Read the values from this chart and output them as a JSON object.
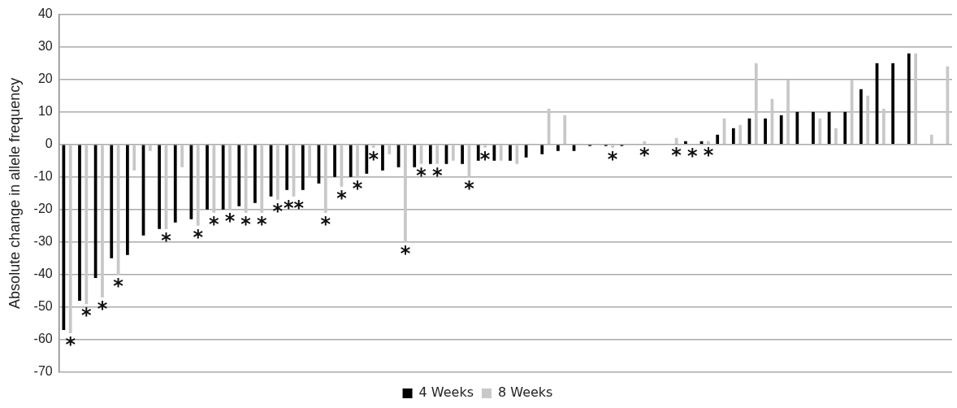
{
  "chart_data": {
    "type": "bar",
    "ylabel": "Absolute change in allele frequency",
    "categories": [
      null,
      null,
      null,
      null,
      null,
      null,
      null,
      null,
      null,
      null,
      null,
      null,
      null,
      null,
      null,
      null,
      null,
      null,
      null,
      null,
      null,
      null,
      null,
      null,
      null,
      null,
      null,
      null,
      null,
      null,
      null,
      null,
      null,
      null,
      null,
      null,
      null,
      null,
      null,
      null,
      null,
      null,
      null,
      null,
      null,
      null,
      null,
      null,
      null,
      null,
      null,
      null,
      null,
      null,
      null,
      null
    ],
    "series": [
      {
        "name": "4 Weeks",
        "color": "#000000",
        "values": [
          -57,
          -48,
          -41,
          -35,
          -34,
          -28,
          -26,
          -24,
          -23,
          -20,
          -20,
          -19,
          -18,
          -16,
          -14,
          -14,
          -12,
          -10,
          -10,
          -9,
          -8,
          -7,
          -7,
          -6,
          -6,
          -6,
          -5,
          -5,
          -5,
          -4,
          -3,
          -2,
          -2,
          -0.5,
          -0.5,
          -0.5,
          0,
          0,
          0,
          1,
          1,
          3,
          5,
          8,
          8,
          9,
          10,
          10,
          10,
          10,
          17,
          25,
          25,
          28,
          0,
          0
        ]
      },
      {
        "name": "8 Weeks",
        "color": "#c8c8c8",
        "values": [
          -58,
          -49,
          -47,
          -40,
          -8,
          -2,
          -26,
          -7,
          -25,
          -21,
          -20,
          -21,
          -21,
          -17,
          -16,
          -10,
          -21,
          -13,
          -10,
          -1,
          -3,
          -30,
          -6,
          -6,
          -5,
          -10,
          -1,
          -5,
          -6,
          null,
          11,
          9,
          0,
          0,
          -1,
          0,
          1,
          0,
          2,
          0,
          1,
          8,
          6,
          25,
          14,
          20,
          0,
          8,
          5,
          20,
          15,
          11,
          0,
          28,
          3,
          24
        ],
        "value_labels": [
          "*",
          "*",
          "*",
          "*",
          null,
          null,
          "*",
          null,
          "*",
          "*",
          "*",
          "*",
          "*",
          "*",
          "**",
          null,
          "*",
          "*",
          "*",
          "*",
          null,
          "*",
          "*",
          "*",
          null,
          "*",
          "*",
          null,
          null,
          null,
          null,
          null,
          null,
          null,
          "*",
          null,
          "*",
          null,
          "*",
          "*",
          "*",
          null,
          null,
          null,
          null,
          null,
          null,
          null,
          null,
          null,
          null,
          null,
          null,
          null,
          null,
          null
        ]
      }
    ],
    "ylim": [
      -70,
      40
    ],
    "yticks": [
      -70,
      -60,
      -50,
      -40,
      -30,
      -20,
      -10,
      0,
      10,
      20,
      30,
      40
    ],
    "grid": "y",
    "legend": "bottom"
  }
}
